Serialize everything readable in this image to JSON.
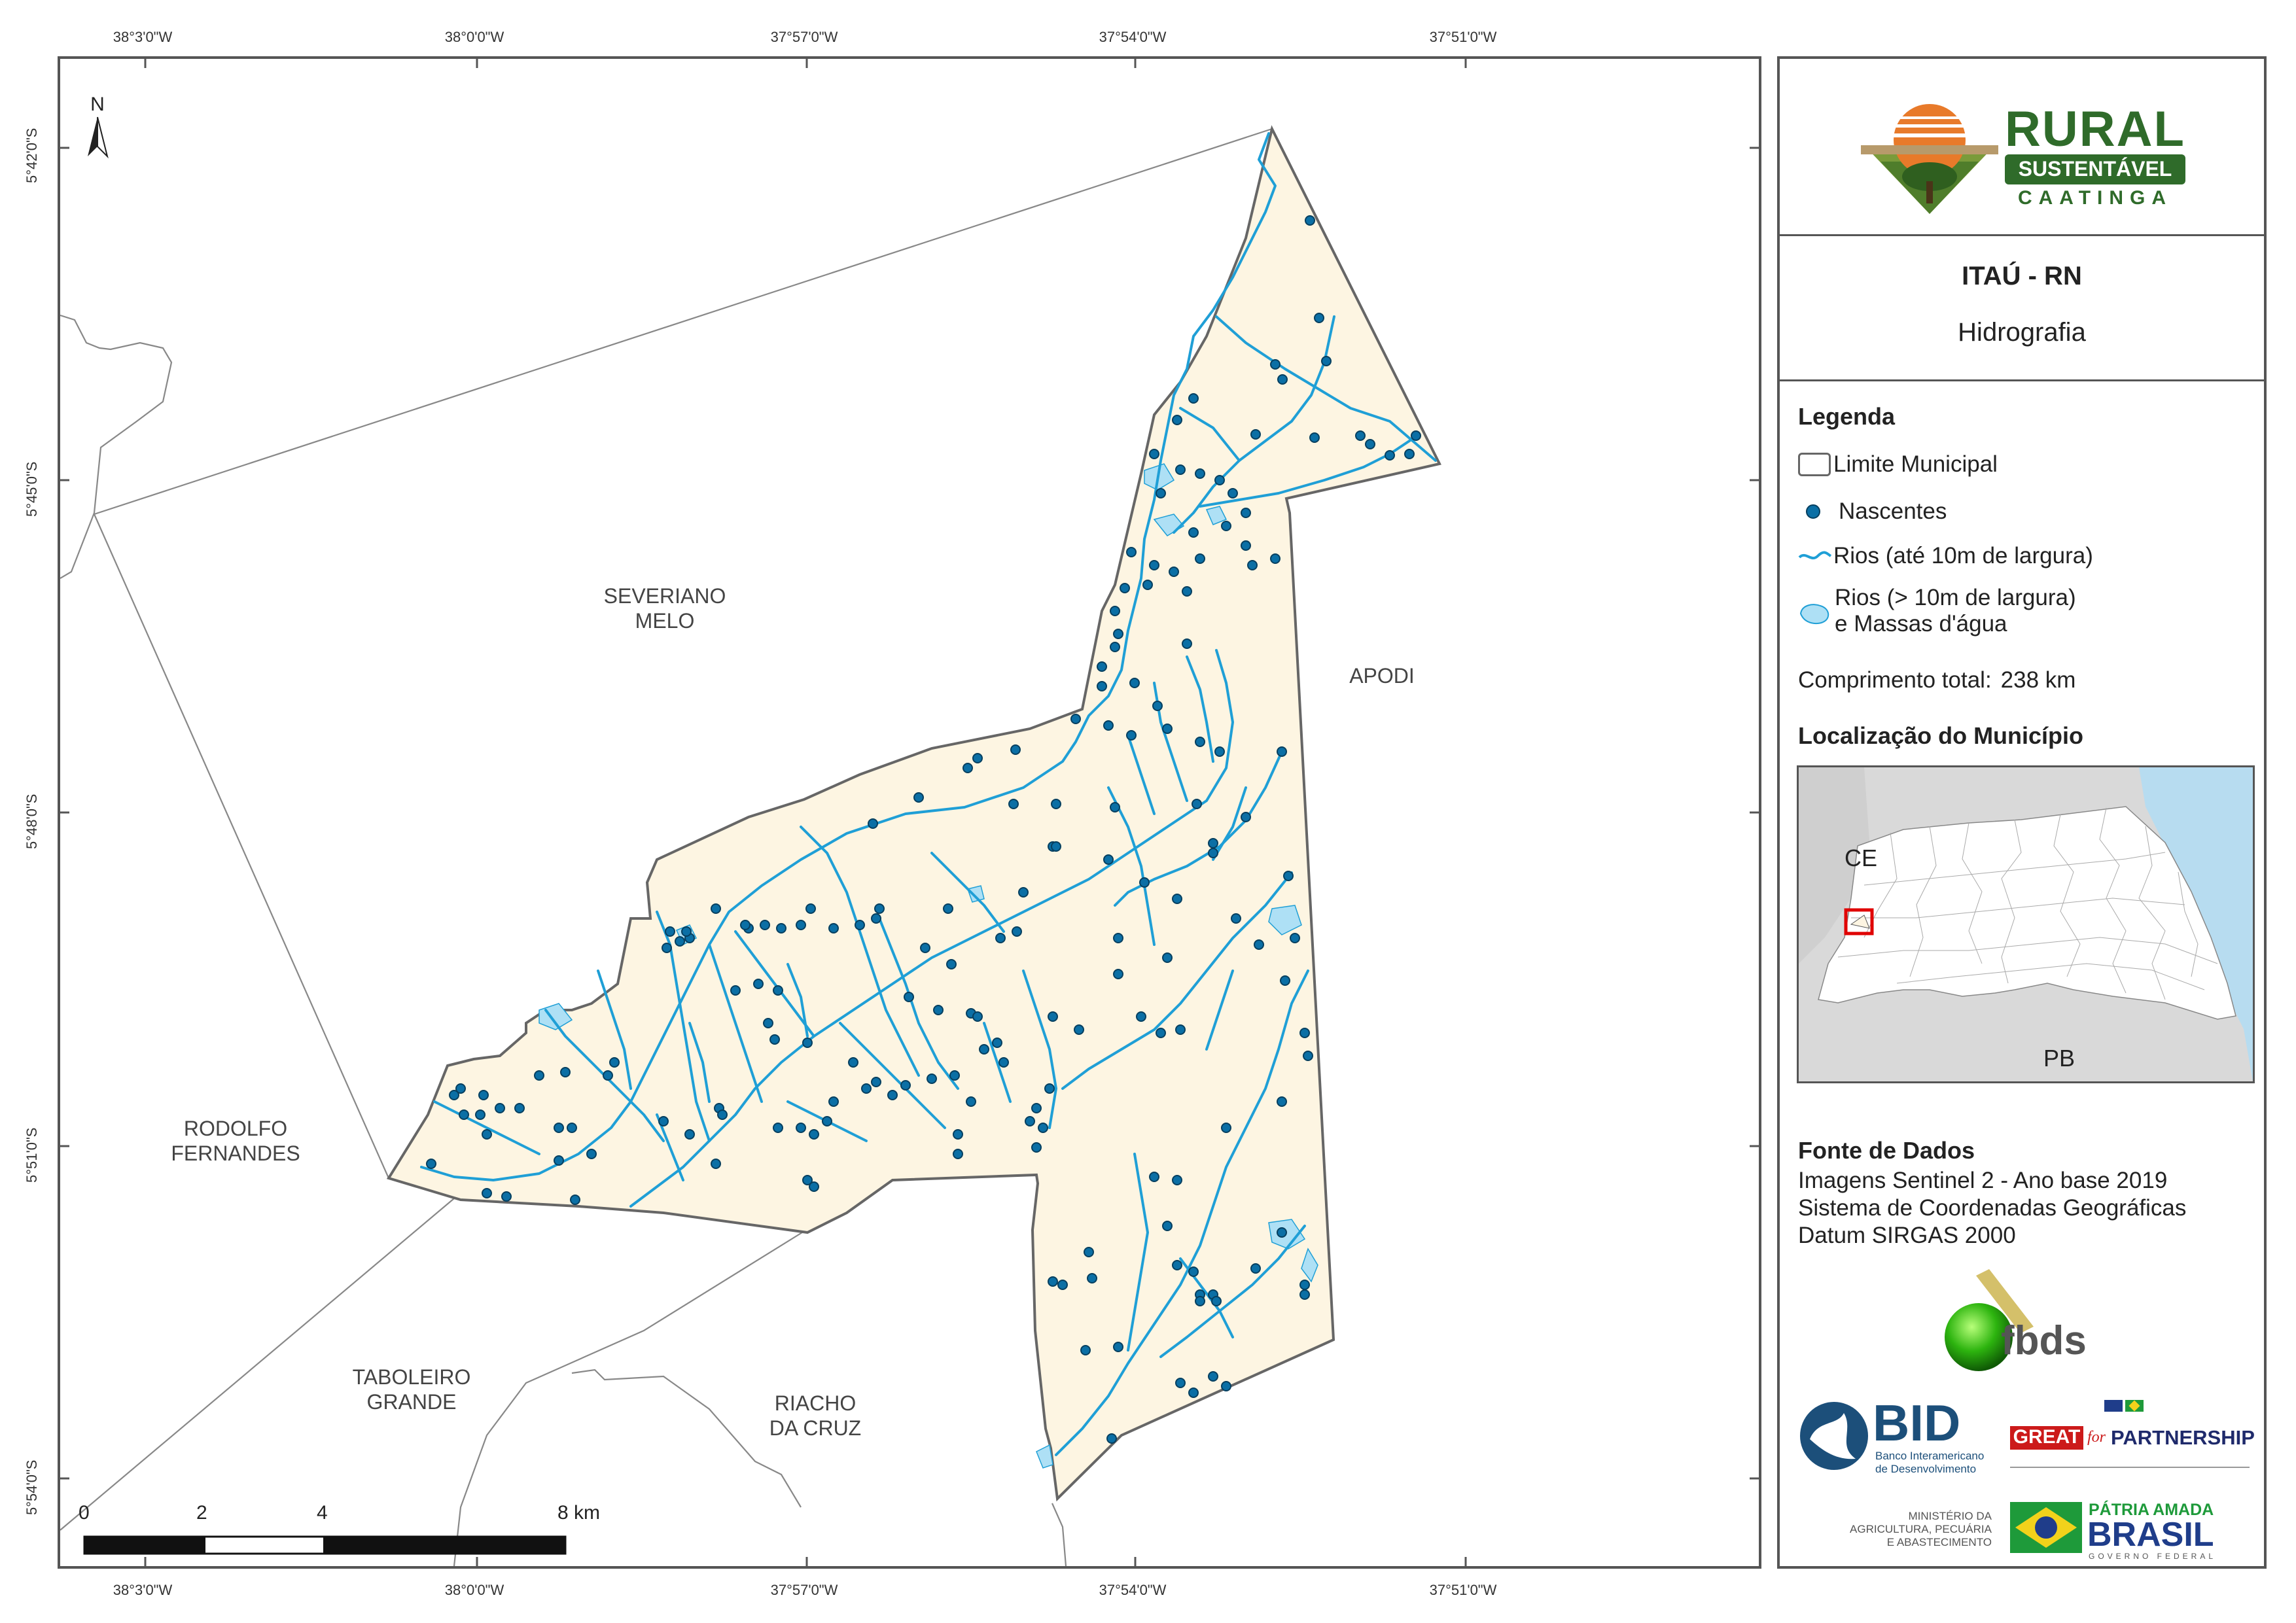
{
  "graticule": {
    "lon_labels": [
      "38°3'0\"W",
      "38°0'0\"W",
      "37°57'0\"W",
      "37°54'0\"W",
      "37°51'0\"W"
    ],
    "lat_labels": [
      "5°42'0\"S",
      "5°45'0\"S",
      "5°48'0\"S",
      "5°51'0\"S",
      "5°54'0\"S"
    ]
  },
  "map": {
    "north_arrow": "N",
    "places": [
      {
        "line1": "SEVERIANO",
        "line2": "MELO"
      },
      {
        "line1": "APODI",
        "line2": ""
      },
      {
        "line1": "RODOLFO",
        "line2": "FERNANDES"
      },
      {
        "line1": "TABOLEIRO",
        "line2": "GRANDE"
      },
      {
        "line1": "RIACHO",
        "line2": "DA CRUZ"
      }
    ],
    "scale_bar": {
      "labels": [
        "0",
        "2",
        "4",
        "8 km"
      ]
    },
    "colors": {
      "municipality_fill": "#fdf5e2",
      "river": "#1f9fd6",
      "nascente": "#0b6fa5",
      "water_body": "#aee0f5",
      "boundary": "#666666"
    }
  },
  "panel": {
    "logo": {
      "word1": "RURAL",
      "word2": "SUSTENTÁVEL",
      "word3": "CAATINGA"
    },
    "title": "ITAÚ - RN",
    "subtitle": "Hidrografia",
    "legend_heading": "Legenda",
    "legend": [
      {
        "label": "Limite Municipal"
      },
      {
        "label": "Nascentes"
      },
      {
        "label": "Rios (até 10m de largura)"
      },
      {
        "label": "Rios (> 10m de largura)",
        "label2": "e Massas d'água"
      }
    ],
    "total_length_label": "Comprimento total:",
    "total_length_value": "238 km",
    "location_heading": "Localização do Município",
    "location_map": {
      "label_ce": "CE",
      "label_pb": "PB"
    },
    "source_heading": "Fonte de Dados",
    "sources": [
      "Imagens Sentinel 2 - Ano base 2019",
      "Sistema de Coordenadas Geográficas",
      "Datum SIRGAS 2000"
    ],
    "partners": {
      "fbds": "fbds",
      "bid": "BID",
      "bid_sub1": "Banco Interamericano",
      "bid_sub2": "de Desenvolvimento",
      "great": "GREAT",
      "great_for": "for",
      "great_partnership": "PARTNERSHIP",
      "ministerio1": "MINISTÉRIO DA",
      "ministerio2": "AGRICULTURA, PECUÁRIA",
      "ministerio3": "E ABASTECIMENTO",
      "brasil_top": "PÁTRIA AMADA",
      "brasil_main": "BRASIL",
      "brasil_sub": "GOVERNO FEDERAL"
    }
  }
}
